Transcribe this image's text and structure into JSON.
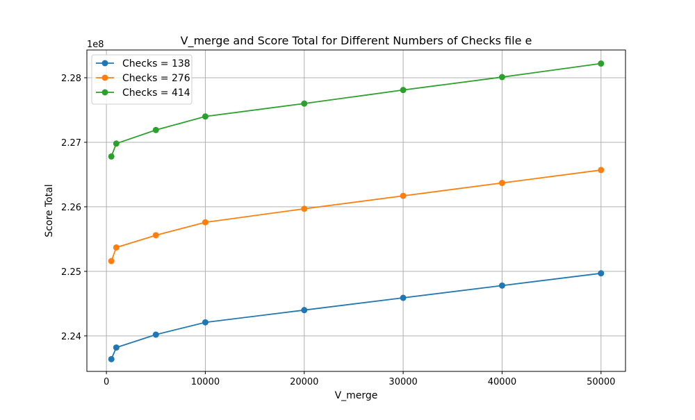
{
  "chart_data": {
    "type": "line",
    "title": "V_merge and Score Total for Different Numbers of Checks file e",
    "xlabel": "V_merge",
    "ylabel": "Score Total",
    "y_offset_label": "1e8",
    "y_scale": 100000000,
    "x": [
      500,
      1000,
      5000,
      10000,
      20000,
      30000,
      40000,
      50000
    ],
    "xlim": [
      -1975,
      52475
    ],
    "ylim": [
      2.2345,
      2.2843
    ],
    "x_ticks": [
      0,
      10000,
      20000,
      30000,
      40000,
      50000
    ],
    "x_tick_labels": [
      "0",
      "10000",
      "20000",
      "30000",
      "40000",
      "50000"
    ],
    "y_ticks": [
      2.24,
      2.25,
      2.26,
      2.27,
      2.28
    ],
    "y_tick_labels": [
      "2.24",
      "2.25",
      "2.26",
      "2.27",
      "2.28"
    ],
    "grid": true,
    "legend_position": "top-left",
    "series": [
      {
        "name": "Checks = 138",
        "color": "#1f77b4",
        "values": [
          2.2364,
          2.2382,
          2.2402,
          2.2421,
          2.244,
          2.2459,
          2.2478,
          2.2497
        ]
      },
      {
        "name": "Checks = 276",
        "color": "#ff7f0e",
        "values": [
          2.2516,
          2.2537,
          2.2556,
          2.2576,
          2.2597,
          2.2617,
          2.2637,
          2.2657
        ]
      },
      {
        "name": "Checks = 414",
        "color": "#2ca02c",
        "values": [
          2.2678,
          2.2698,
          2.2719,
          2.274,
          2.276,
          2.2781,
          2.2801,
          2.2822
        ]
      }
    ]
  }
}
